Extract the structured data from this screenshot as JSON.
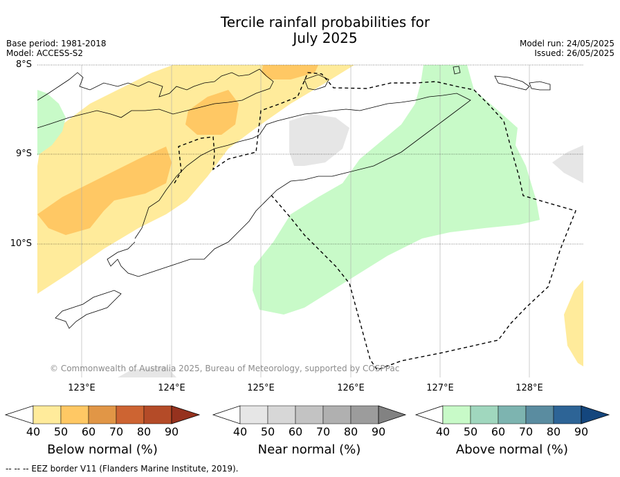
{
  "title_line1": "Tercile rainfall probabilities for",
  "title_line2": "July 2025",
  "base_period": "Base period: 1981-2018",
  "model": "Model: ACCESS-S2",
  "model_run": "Model run: 24/05/2025",
  "issued": "Issued: 26/05/2025",
  "y_ticks": [
    "8°S",
    "9°S",
    "10°S"
  ],
  "x_ticks": [
    "123°E",
    "124°E",
    "125°E",
    "126°E",
    "127°E",
    "128°E"
  ],
  "copyright": "© Commonwealth of Australia 2025, Bureau of Meteorology, supported by COSPPac",
  "footer": "--  --  -- EEZ border V11 (Flanders Marine Institute, 2019).",
  "colorbars": [
    {
      "label": "Below normal (%)",
      "ticks": [
        "40",
        "50",
        "60",
        "70",
        "80",
        "90"
      ],
      "colors": [
        "#ffffff",
        "#ffeb9b",
        "#ffc864",
        "#e19646",
        "#cd6432",
        "#b44b28",
        "#96321e"
      ]
    },
    {
      "label": "Near normal (%)",
      "ticks": [
        "40",
        "50",
        "60",
        "70",
        "80",
        "90"
      ],
      "colors": [
        "#ffffff",
        "#e6e6e6",
        "#d7d7d7",
        "#c3c3c3",
        "#b0b0b0",
        "#9c9c9c",
        "#828282"
      ]
    },
    {
      "label": "Above normal (%)",
      "ticks": [
        "40",
        "50",
        "60",
        "70",
        "80",
        "90"
      ],
      "colors": [
        "#ffffff",
        "#c8fac8",
        "#a0d7be",
        "#7db4b0",
        "#5a8ca0",
        "#2d6496",
        "#14467d"
      ]
    }
  ]
}
